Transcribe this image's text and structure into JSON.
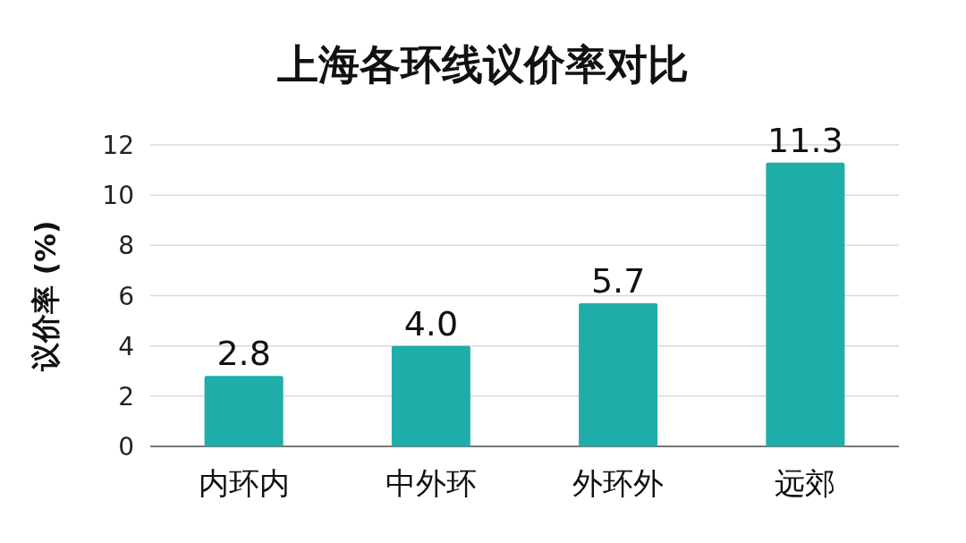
{
  "chart_data": {
    "type": "bar",
    "title": "上海各环线议价率对比",
    "ylabel": "议价率 (%)",
    "categories": [
      "内环内",
      "中外环",
      "外环外",
      "远郊"
    ],
    "values": [
      2.8,
      4.0,
      5.7,
      11.3
    ],
    "color": "#1fadaa",
    "ylim": [
      0,
      12
    ],
    "yticks": [
      0,
      2,
      4,
      6,
      8,
      10,
      12
    ],
    "grid": "y",
    "value_labels": [
      "2.8",
      "4.0",
      "5.7",
      "11.3"
    ]
  }
}
